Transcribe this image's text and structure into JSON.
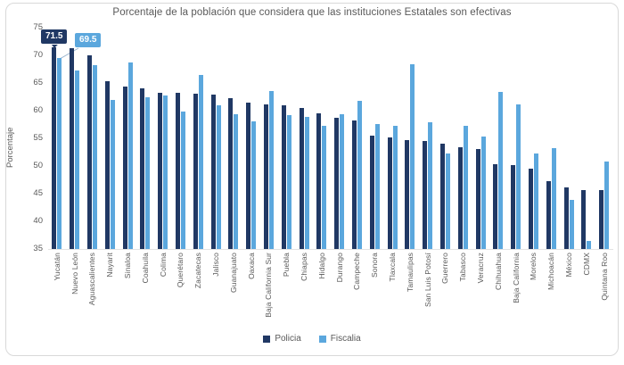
{
  "title": "Porcentaje de la población que considera que las instituciones Estatales son efectivas",
  "ylabel": "Porcentaje",
  "legend": [
    {
      "label": "Policia",
      "color": "#203864"
    },
    {
      "label": "Fiscalia",
      "color": "#5ba7dd"
    }
  ],
  "chart_data": {
    "type": "bar",
    "title": "Porcentaje de la población que considera que las instituciones Estatales son efectivas",
    "xlabel": "",
    "ylabel": "Porcentaje",
    "ylim": [
      35,
      75
    ],
    "ytick_step": 5,
    "grid": false,
    "legend_position": "bottom",
    "categories": [
      "Yucatán",
      "Nuevo León",
      "Aguascalientes",
      "Nayarit",
      "Sinaloa",
      "Coahuila",
      "Colima",
      "Querétaro",
      "Zacatecas",
      "Jalisco",
      "Guanajuato",
      "Oaxaca",
      "Baja California Sur",
      "Puebla",
      "Chiapas",
      "Hidalgo",
      "Durango",
      "Campeche",
      "Sonora",
      "Tlaxcala",
      "Tamaulipas",
      "San Luis Potosí",
      "Guerrero",
      "Tabasco",
      "Veracruz",
      "Chihuahua",
      "Baja California",
      "Morelos",
      "Michoacán",
      "México",
      "CDMX",
      "Quintana Roo"
    ],
    "series": [
      {
        "name": "Policia",
        "color": "#203864",
        "values": [
          71.5,
          71.3,
          70.0,
          65.3,
          64.4,
          64.1,
          63.3,
          63.2,
          63.0,
          62.9,
          62.2,
          61.4,
          61.2,
          60.9,
          60.5,
          59.5,
          58.7,
          58.2,
          55.5,
          55.1,
          54.7,
          54.5,
          54.0,
          53.4,
          53.0,
          50.3,
          50.2,
          49.5,
          47.2,
          46.1,
          45.7,
          45.6
        ]
      },
      {
        "name": "Fiscalia",
        "color": "#5ba7dd",
        "values": [
          69.5,
          67.3,
          68.3,
          62.0,
          68.7,
          62.5,
          62.7,
          59.9,
          66.5,
          61.0,
          59.3,
          58.1,
          63.6,
          59.2,
          58.9,
          57.2,
          59.4,
          61.8,
          57.6,
          57.3,
          68.4,
          57.9,
          52.3,
          57.3,
          55.4,
          63.4,
          61.2,
          52.3,
          53.3,
          43.8,
          36.4,
          50.8
        ]
      }
    ],
    "data_labels": [
      {
        "category": "Yucatán",
        "series": "Policia",
        "text": "71.5"
      },
      {
        "category": "Yucatán",
        "series": "Fiscalia",
        "text": "69.5"
      }
    ]
  }
}
